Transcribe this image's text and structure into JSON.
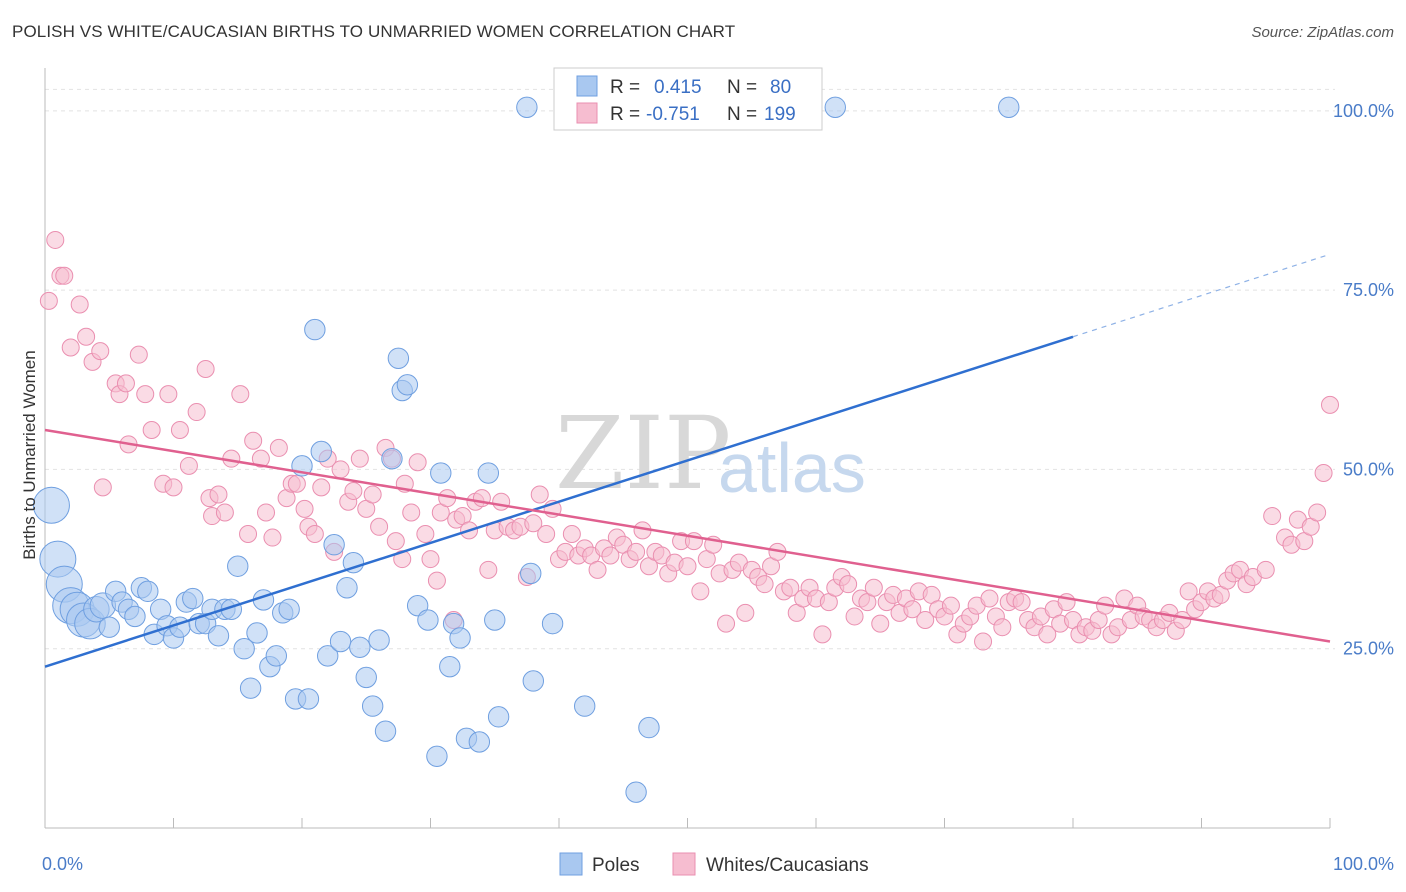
{
  "header": {
    "title": "POLISH VS WHITE/CAUCASIAN BIRTHS TO UNMARRIED WOMEN CORRELATION CHART",
    "source": "Source: ZipAtlas.com"
  },
  "legend": {
    "rows": [
      {
        "r_label": "R =",
        "r_value": "0.415",
        "n_label": "N =",
        "n_value": "80"
      },
      {
        "r_label": "R =",
        "r_value": "-0.751",
        "n_label": "N =",
        "n_value": "199"
      }
    ]
  },
  "bottom_legend": {
    "items": [
      "Poles",
      "Whites/Caucasians"
    ]
  },
  "watermark": {
    "part1": "ZIP",
    "part2": "atlas"
  },
  "colors": {
    "blue_fill": "#a9c8f0",
    "blue_stroke": "#6f9fe0",
    "blue_line": "#2f6fd0",
    "pink_fill": "#f6bdd0",
    "pink_stroke": "#ea8fb0",
    "pink_line": "#e0608f"
  },
  "chart_data": {
    "type": "scatter",
    "title": "POLISH VS WHITE/CAUCASIAN BIRTHS TO UNMARRIED WOMEN CORRELATION CHART",
    "xlabel": "",
    "ylabel": "Births to Unmarried Women",
    "xlim": [
      0,
      100
    ],
    "ylim": [
      0,
      105
    ],
    "x_tick_labels": [
      "0.0%",
      "100.0%"
    ],
    "y_ticks": [
      25,
      50,
      75,
      100
    ],
    "y_tick_labels": [
      "25.0%",
      "50.0%",
      "75.0%",
      "100.0%"
    ],
    "grid": true,
    "legend_position": "top-center",
    "series": [
      {
        "name": "Poles",
        "r": 0.415,
        "n": 80,
        "trend": {
          "x0": 0,
          "y0": 22.5,
          "x1": 80,
          "y1": 68.5,
          "dash_to_x": 100,
          "dash_to_y": 80
        },
        "points": [
          [
            0.5,
            45,
            4
          ],
          [
            1,
            37.5,
            3
          ],
          [
            1.5,
            34,
            3
          ],
          [
            2,
            31,
            2.5
          ],
          [
            2.5,
            30.5,
            2
          ],
          [
            3,
            29,
            2
          ],
          [
            3.5,
            28.5,
            1.8
          ],
          [
            4,
            30.5,
            1.5
          ],
          [
            4.5,
            31,
            1.5
          ],
          [
            5,
            28,
            1.2
          ],
          [
            5.5,
            33,
            1.2
          ],
          [
            6,
            31.5,
            1.2
          ],
          [
            6.5,
            30.5,
            1.2
          ],
          [
            7,
            29.5,
            1.2
          ],
          [
            7.5,
            33.5,
            1.2
          ],
          [
            8,
            33,
            1.2
          ],
          [
            8.5,
            27,
            1.2
          ],
          [
            9,
            30.5,
            1.2
          ],
          [
            9.5,
            28.2,
            1.2
          ],
          [
            10,
            26.5,
            1.2
          ],
          [
            10.5,
            28,
            1.2
          ],
          [
            11,
            31.5,
            1.2
          ],
          [
            11.5,
            32,
            1.2
          ],
          [
            12,
            28.5,
            1.2
          ],
          [
            12.5,
            28.5,
            1.2
          ],
          [
            13,
            30.5,
            1.2
          ],
          [
            13.5,
            26.8,
            1.2
          ],
          [
            14,
            30.5,
            1.2
          ],
          [
            14.5,
            30.5,
            1.2
          ],
          [
            15,
            36.5,
            1.2
          ],
          [
            15.5,
            25,
            1.2
          ],
          [
            16,
            19.5,
            1.2
          ],
          [
            16.5,
            27.2,
            1.2
          ],
          [
            17,
            31.8,
            1.2
          ],
          [
            17.5,
            22.5,
            1.2
          ],
          [
            18,
            24,
            1.2
          ],
          [
            18.5,
            30,
            1.2
          ],
          [
            19,
            30.5,
            1.2
          ],
          [
            19.5,
            18,
            1.2
          ],
          [
            20,
            50.5,
            1.2
          ],
          [
            20.5,
            18,
            1.2
          ],
          [
            21,
            69.5,
            1.2
          ],
          [
            21.5,
            52.5,
            1.2
          ],
          [
            22,
            24,
            1.2
          ],
          [
            22.5,
            39.5,
            1.2
          ],
          [
            23,
            26,
            1.2
          ],
          [
            23.5,
            33.5,
            1.2
          ],
          [
            24,
            37,
            1.2
          ],
          [
            24.5,
            25.2,
            1.2
          ],
          [
            25,
            21,
            1.2
          ],
          [
            25.5,
            17,
            1.2
          ],
          [
            26,
            26.2,
            1.2
          ],
          [
            26.5,
            13.5,
            1.2
          ],
          [
            27,
            51.5,
            1.2
          ],
          [
            27.5,
            65.5,
            1.2
          ],
          [
            27.8,
            61,
            1.2
          ],
          [
            28.2,
            61.8,
            1.2
          ],
          [
            29,
            31,
            1.2
          ],
          [
            29.8,
            29,
            1.2
          ],
          [
            30.5,
            10,
            1.2
          ],
          [
            30.8,
            49.5,
            1.2
          ],
          [
            31.5,
            22.5,
            1.2
          ],
          [
            31.8,
            28.5,
            1.2
          ],
          [
            32.3,
            26.5,
            1.2
          ],
          [
            32.8,
            12.5,
            1.2
          ],
          [
            33.8,
            12,
            1.2
          ],
          [
            34.5,
            49.5,
            1.2
          ],
          [
            35,
            29,
            1.2
          ],
          [
            35.3,
            15.5,
            1.2
          ],
          [
            37.5,
            100.5,
            1.2
          ],
          [
            37.8,
            35.5,
            1.2
          ],
          [
            38,
            20.5,
            1.2
          ],
          [
            39.5,
            28.5,
            1.2
          ],
          [
            42,
            17,
            1.2
          ],
          [
            46,
            5,
            1.2
          ],
          [
            47,
            14,
            1.2
          ],
          [
            49.5,
            100.5,
            1.2
          ],
          [
            56.5,
            100.5,
            1.2
          ],
          [
            61.5,
            100.5,
            1.2
          ],
          [
            75,
            100.5,
            1.2
          ]
        ]
      },
      {
        "name": "Whites/Caucasians",
        "r": -0.751,
        "n": 199,
        "trend": {
          "x0": 0,
          "y0": 55.5,
          "x1": 100,
          "y1": 26
        }
      }
    ]
  }
}
